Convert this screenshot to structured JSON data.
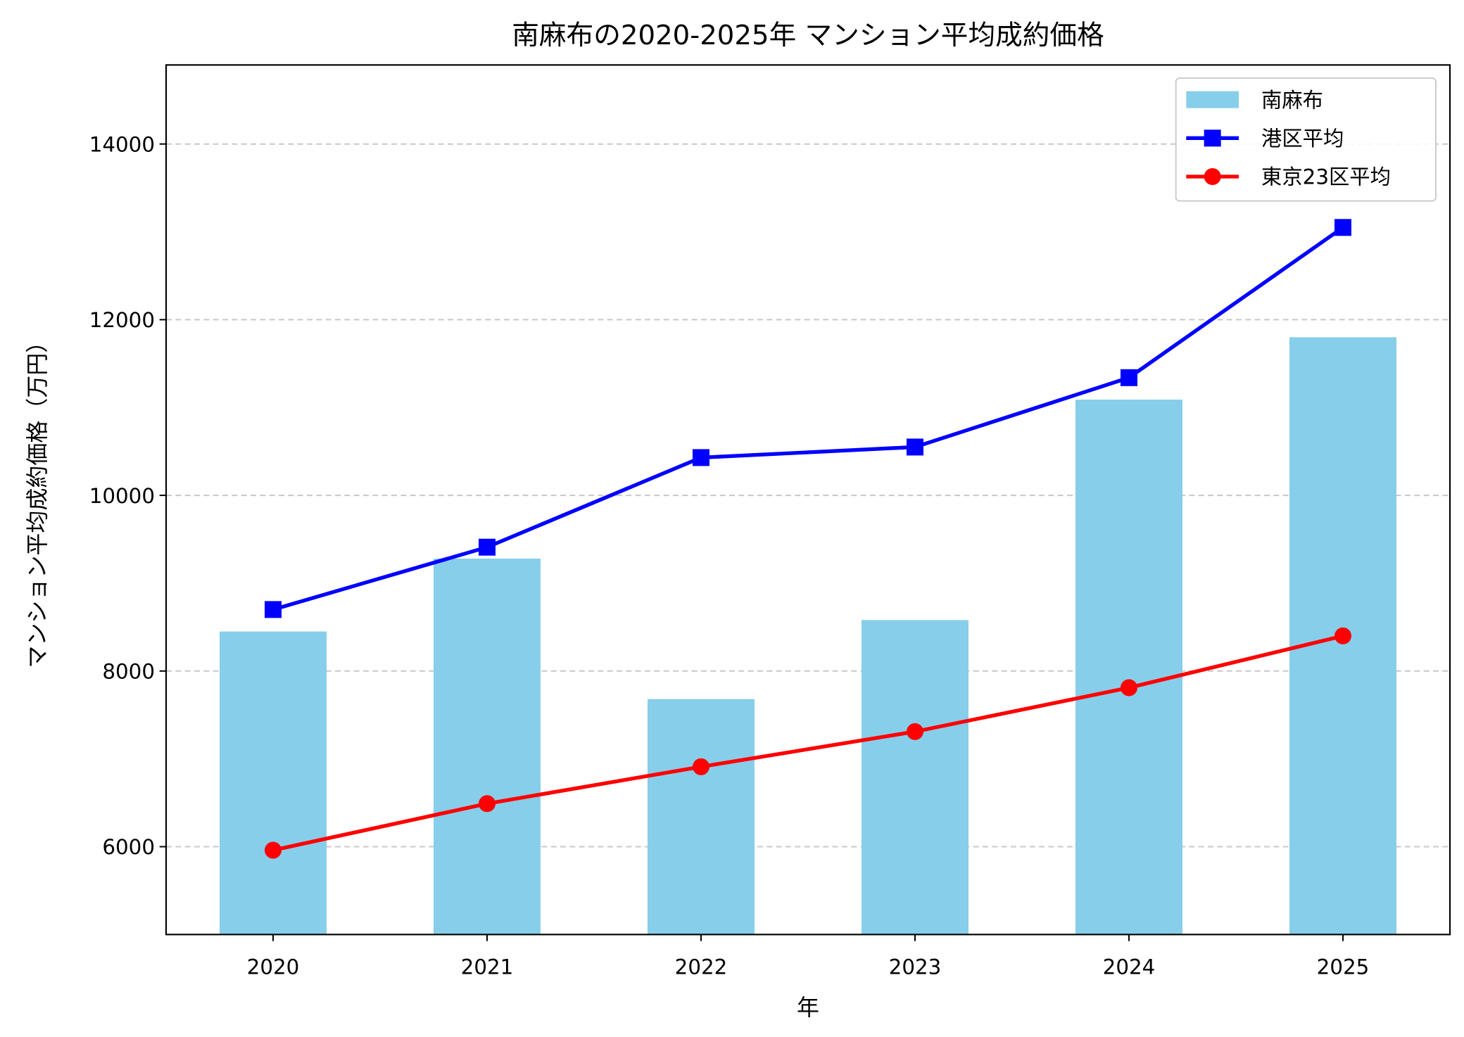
{
  "chart_data": {
    "type": "bar+line",
    "title": "南麻布の2020-2025年 マンション平均成約価格",
    "xlabel": "年",
    "ylabel": "マンション平均成約価格（万円）",
    "categories": [
      "2020",
      "2021",
      "2022",
      "2023",
      "2024",
      "2025"
    ],
    "ylim": [
      5000,
      14900
    ],
    "yticks": [
      6000,
      8000,
      10000,
      12000,
      14000
    ],
    "grid": "y-dashed",
    "legend_position": "top-right",
    "series": [
      {
        "name": "南麻布",
        "kind": "bar",
        "color": "#87ceeb",
        "values": [
          8450,
          9280,
          7680,
          8580,
          11090,
          11800
        ]
      },
      {
        "name": "港区平均",
        "kind": "line",
        "marker": "square",
        "color": "#0000ff",
        "values": [
          8700,
          9410,
          10430,
          10550,
          11340,
          13050
        ]
      },
      {
        "name": "東京23区平均",
        "kind": "line",
        "marker": "circle",
        "color": "#ff0000",
        "values": [
          5960,
          6490,
          6910,
          7310,
          7810,
          8400
        ]
      }
    ]
  }
}
